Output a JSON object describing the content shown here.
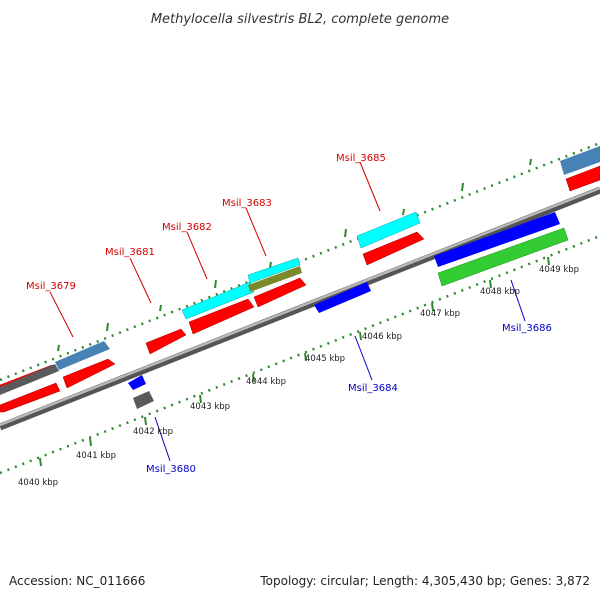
{
  "title": "Methylocella silvestris BL2, complete genome",
  "footer": {
    "accession": "Accession: NC_011666",
    "summary": "Topology: circular; Length: 4,305,430 bp; Genes: 3,872"
  },
  "colors": {
    "forward_label": "#d40000",
    "reverse_label": "#0000c8",
    "cds": "#ff0000",
    "rrna_blue": "#0000ff",
    "gene_cyan": "#00ffff",
    "gene_green": "#33cc33",
    "gene_olive": "#7a8a2a",
    "gene_steel": "#4682b4",
    "gene_gray": "#5a5a5a",
    "backbone": "#7a7a7a",
    "ticks": "#2f8a2f"
  },
  "scale_labels": [
    "4040 kbp",
    "4041 kbp",
    "4042 kbp",
    "4043 kbp",
    "4044 kbp",
    "4045 kbp",
    "4046 kbp",
    "4047 kbp",
    "4048 kbp",
    "4049 kbp"
  ],
  "gene_labels": {
    "forward": [
      "Msil_3679",
      "Msil_3681",
      "Msil_3682",
      "Msil_3683",
      "Msil_3685"
    ],
    "reverse": [
      "Msil_3680",
      "Msil_3684",
      "Msil_3686"
    ]
  }
}
